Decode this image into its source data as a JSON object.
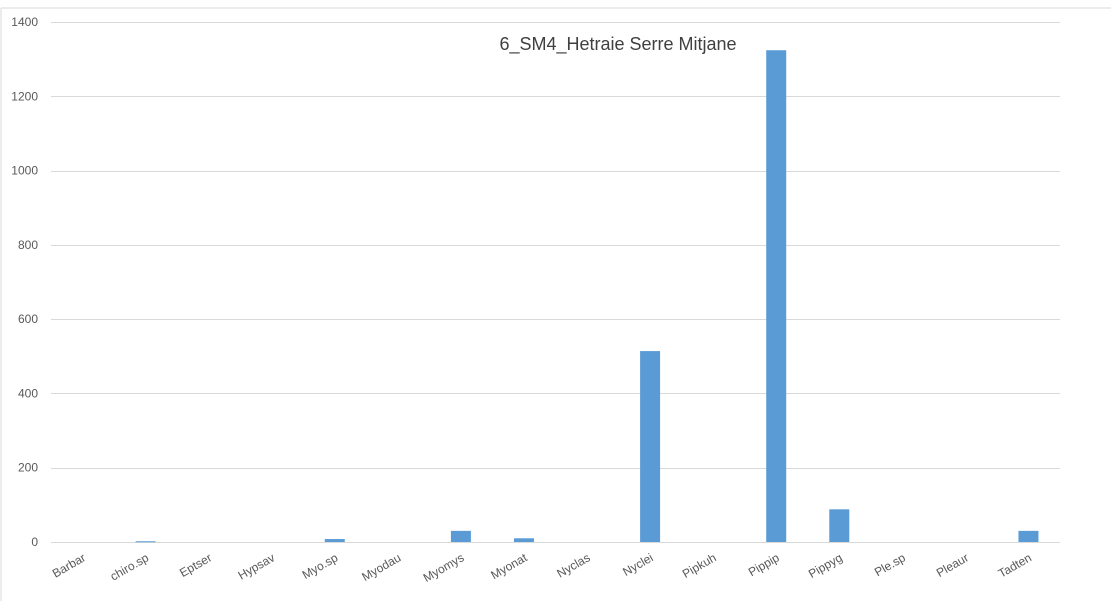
{
  "chart_data": {
    "type": "bar",
    "title": "6_SM4_Hetraie Serre Mitjane",
    "xlabel": "",
    "ylabel": "",
    "ylim": [
      0,
      1400
    ],
    "yticks": [
      0,
      200,
      400,
      600,
      800,
      1000,
      1200,
      1400
    ],
    "yticks_labels": [
      "0",
      "200",
      "400",
      "600",
      "800",
      "1000",
      "1200",
      "1400"
    ],
    "grid": true,
    "legend": "none",
    "categories": [
      "Barbar",
      "chiro.sp",
      "Eptser",
      "Hypsav",
      "Myo.sp",
      "Myodau",
      "Myomys",
      "Myonat",
      "Nyclas",
      "Nyclei",
      "Pipkuh",
      "Pippip",
      "Pippyg",
      "Ple.sp",
      "Pleaur",
      "Tadten"
    ],
    "values": [
      0,
      2,
      0,
      0,
      8,
      0,
      30,
      10,
      0,
      514,
      0,
      1324,
      88,
      0,
      0,
      30
    ],
    "bar_color": "#5b9bd5"
  }
}
